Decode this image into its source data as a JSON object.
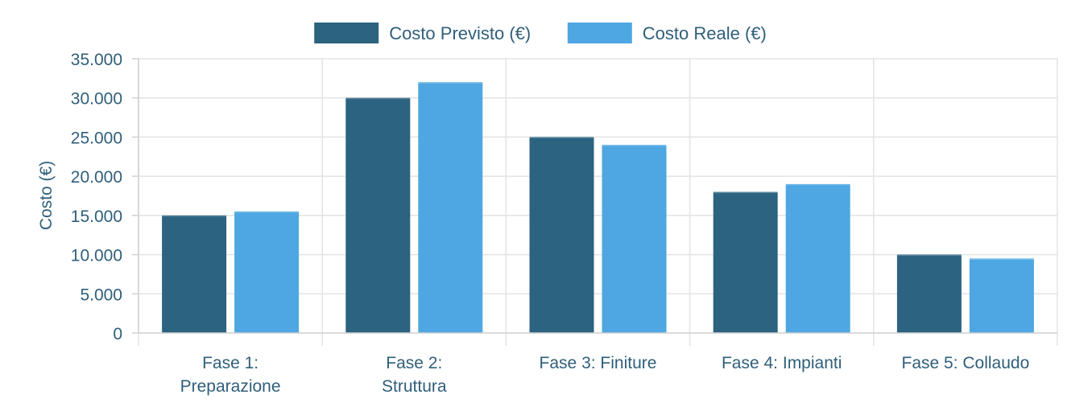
{
  "chart_data": {
    "type": "bar",
    "ylabel": "Costo (€)",
    "ylim": [
      0,
      35000
    ],
    "yticks": [
      "0",
      "5.000",
      "10.000",
      "15.000",
      "20.000",
      "25.000",
      "30.000",
      "35.000"
    ],
    "categories": [
      [
        "Fase 1:",
        "Preparazione"
      ],
      [
        "Fase 2:",
        "Struttura"
      ],
      [
        "Fase 3: Finiture"
      ],
      [
        "Fase 4: Impianti"
      ],
      [
        "Fase 5: Collaudo"
      ]
    ],
    "series": [
      {
        "name": "Costo Previsto (€)",
        "color": "#2b6380",
        "values": [
          15000,
          30000,
          25000,
          18000,
          10000
        ]
      },
      {
        "name": "Costo Reale (€)",
        "color": "#4ea7e2",
        "values": [
          15500,
          32000,
          24000,
          19000,
          9500
        ]
      }
    ],
    "legend_position": "top-center",
    "grid": true
  }
}
